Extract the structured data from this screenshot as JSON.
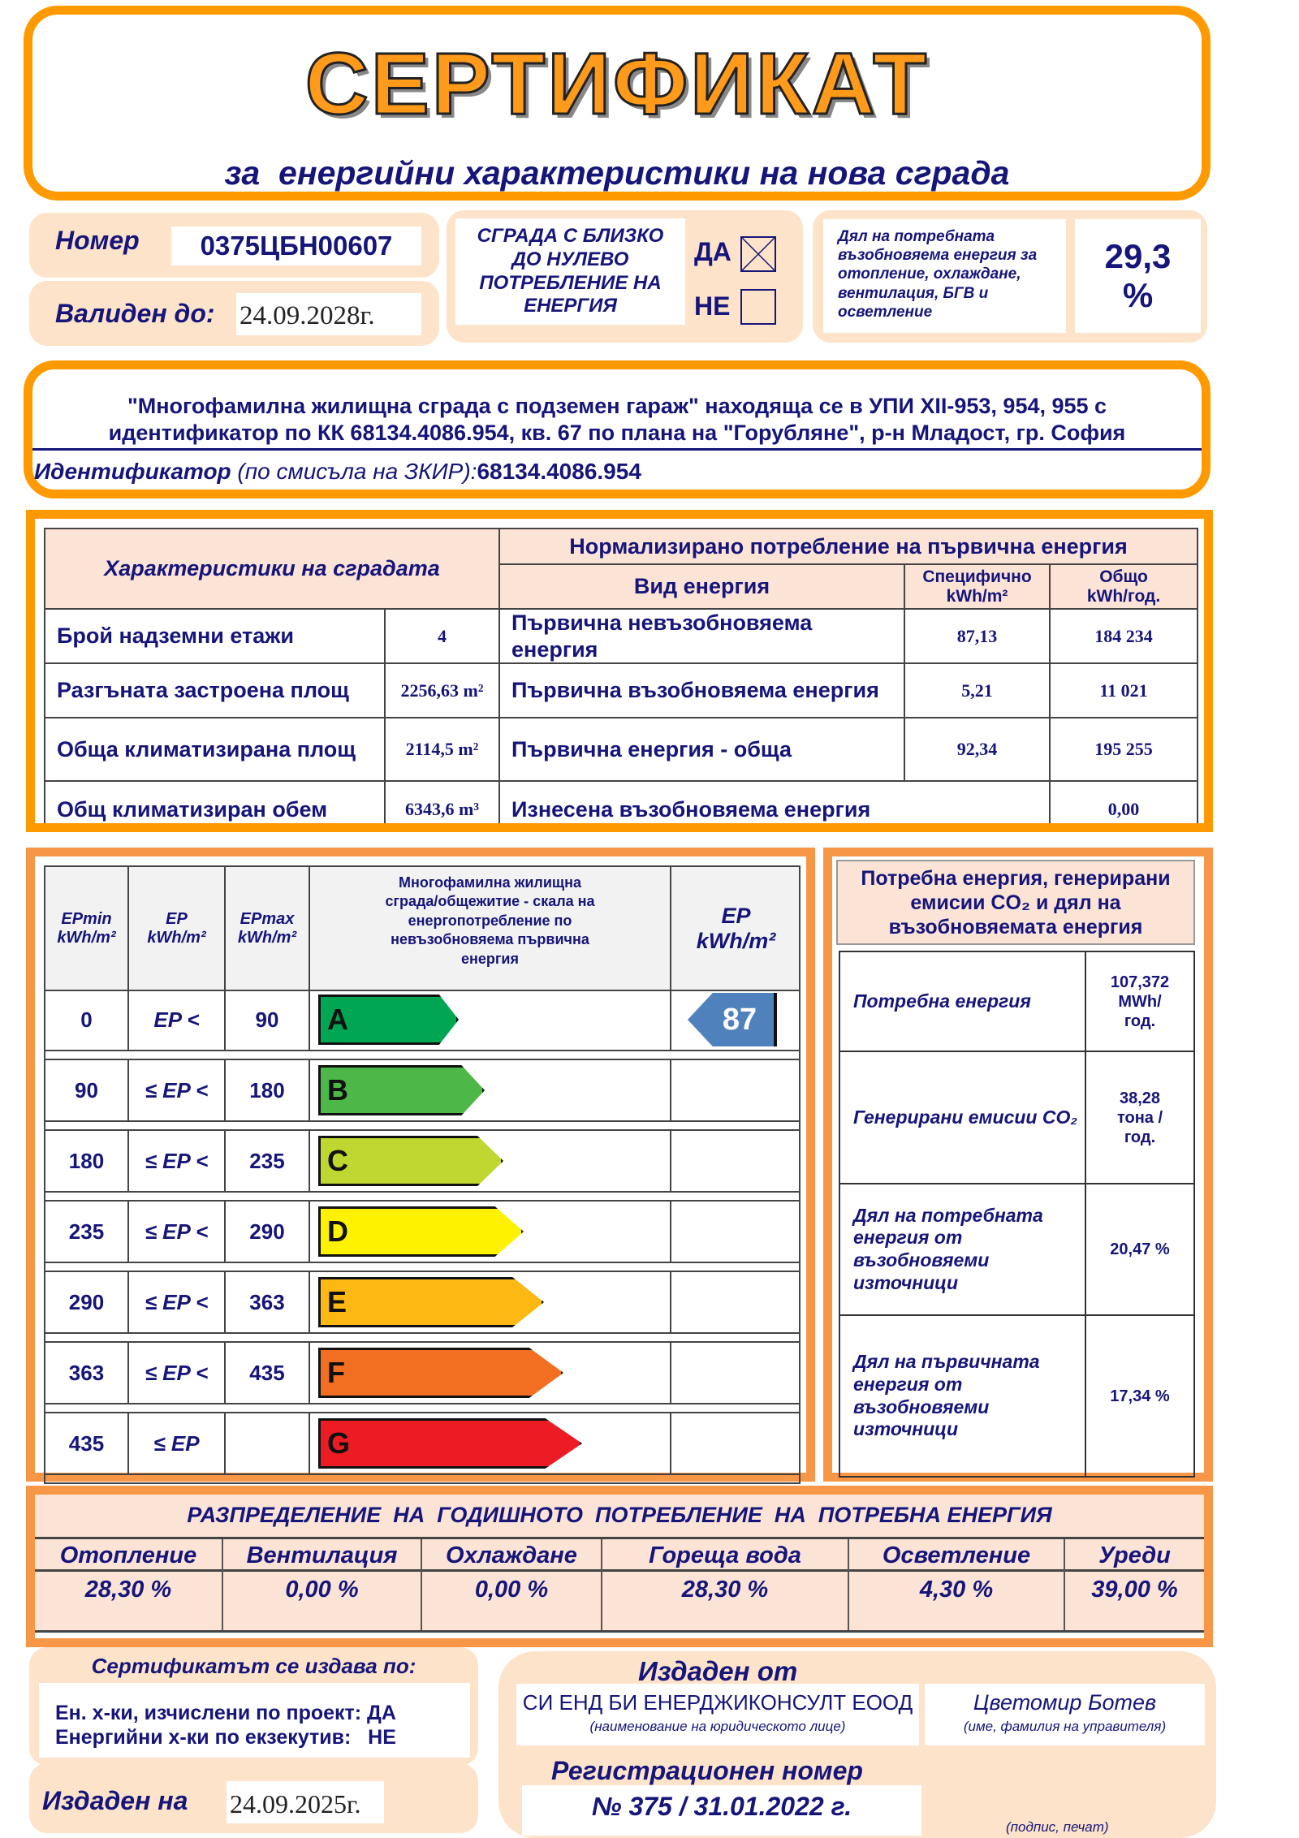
{
  "header": {
    "title": "СЕРТИФИКАТ",
    "subtitle": "за  енергийни характеристики на нова сграда"
  },
  "certificate": {
    "number_label": "Номер",
    "number": "0375ЦБН00607",
    "valid_label": "Валиден до:",
    "valid_until": "24.09.2028г."
  },
  "nzeb": {
    "label": "СГРАДА С БЛИЗКО ДО НУЛЕВО ПОТРЕБЛЕНИЕ НА ЕНЕРГИЯ",
    "yes_label": "ДА",
    "no_label": "НЕ",
    "yes_checked": true,
    "no_checked": false
  },
  "renewable_share": {
    "label": "Дял на потребната възобновяема енергия за отопление, охлаждане, вентилация, БГВ и  осветление",
    "value": "29,3",
    "unit": "%"
  },
  "address": {
    "line1": "\"Многофамилна жилищна сграда с подземен гараж\" находяща се в УПИ XII-953, 954, 955 с",
    "line2": "идентификатор по КК 68134.4086.954, кв. 67 по плана на \"Горубляне\", р-н Младост, гр. София",
    "identifier_label": "Идентификатор",
    "identifier_note": " (по смисъла на ЗКИР):",
    "identifier": "68134.4086.954"
  },
  "characteristics": {
    "left_header": "Характеристики на сградата",
    "right_header": "Нормализирано потребление на първична енергия",
    "col_type": "Вид енергия",
    "col_specific": "Специфично",
    "col_specific_unit": "kWh/m²",
    "col_total": "Общо",
    "col_total_unit": "kWh/год.",
    "rows": [
      {
        "label": "Брой надземни етажи",
        "value": "4",
        "type": "Първична невъзобновяема енергия",
        "specific": "87,13",
        "total": "184 234"
      },
      {
        "label": "Разгъната застроена площ",
        "value": "2256,63 m²",
        "type": "Първична възобновяема енергия",
        "specific": "5,21",
        "total": "11 021"
      },
      {
        "label": "Обща климатизирана площ",
        "value": "2114,5 m²",
        "type": "Първична енергия - обща",
        "specific": "92,34",
        "total": "195 255"
      },
      {
        "label": "Общ климатизиран обем",
        "value": "6343,6 m³",
        "type": "Изнесена възобновяема енергия",
        "specific": "",
        "total": "0,00"
      }
    ]
  },
  "scale": {
    "h_epmin": "EPmin",
    "h_ep": "EP",
    "h_epmax": "EPmax",
    "h_unit": "kWh/m²",
    "h_desc": "Многофамилна жилищна сграда/общежитие - скала на енергопотребление по невъзобновяема първична енергия",
    "h_result": "EP",
    "h_result_unit": "kWh/m²",
    "classes": [
      {
        "min": "0",
        "op": "EP <",
        "max": "90",
        "label": "A",
        "color": "#00a651"
      },
      {
        "min": "90",
        "op": "≤ EP <",
        "max": "180",
        "label": "B",
        "color": "#4db848"
      },
      {
        "min": "180",
        "op": "≤ EP <",
        "max": "235",
        "label": "C",
        "color": "#bfd730"
      },
      {
        "min": "235",
        "op": "≤ EP <",
        "max": "290",
        "label": "D",
        "color": "#fff200"
      },
      {
        "min": "290",
        "op": "≤ EP <",
        "max": "363",
        "label": "E",
        "color": "#fdb813"
      },
      {
        "min": "363",
        "op": "≤ EP <",
        "max": "435",
        "label": "F",
        "color": "#f26f21"
      },
      {
        "min": "435",
        "op": "≤ EP",
        "max": "",
        "label": "G",
        "color": "#ed1c24"
      }
    ],
    "result": "87",
    "result_class": "A",
    "result_color": "#4f81bd"
  },
  "summary": {
    "title": "Потребна енергия, генерирани емисии CO₂ и дял на възобновяемата енергия",
    "rows": [
      {
        "label": "Потребна енергия",
        "value": "107,372 MWh/ год."
      },
      {
        "label": "Генерирани емисии CO₂",
        "value": "38,28 тона /год."
      },
      {
        "label": "Дял на потребната енергия от възобновяеми източници",
        "value": "20,47 %"
      },
      {
        "label": "Дял на първичната енергия от възобновяеми източници",
        "value": "17,34 %"
      }
    ]
  },
  "distribution": {
    "title": "РАЗПРЕДЕЛЕНИЕ  НА  ГОДИШНОТО  ПОТРЕБЛЕНИЕ  НА  ПОТРЕБНА ЕНЕРГИЯ",
    "items": [
      {
        "label": "Отопление",
        "value": "28,30 %"
      },
      {
        "label": "Вентилация",
        "value": "0,00 %"
      },
      {
        "label": "Охлаждане",
        "value": "0,00 %"
      },
      {
        "label": "Гореща вода",
        "value": "28,30 %"
      },
      {
        "label": "Осветление",
        "value": "4,30 %"
      },
      {
        "label": "Уреди",
        "value": "39,00 %"
      }
    ]
  },
  "basis": {
    "title": "Сертификатът се издава по:",
    "line1": "Ен. х-ки, изчислени по проект: ДА",
    "line2": "Енергийни х-ки по екзекутив:   НЕ"
  },
  "issued": {
    "date_label": "Издаден на",
    "date": "24.09.2025г.",
    "by_label": "Издаден от",
    "company": "СИ ЕНД БИ ЕНЕРДЖИКОНСУЛТ ЕООД",
    "company_note": "(наименование на юридическото лице)",
    "manager": "Цветомир Ботев",
    "manager_note": "(име, фамилия на управителя)",
    "reg_label": "Регистрационен номер",
    "reg_number": "№ 375 / 31.01.2022 г.",
    "signature_note": "(подпис, печат)"
  }
}
